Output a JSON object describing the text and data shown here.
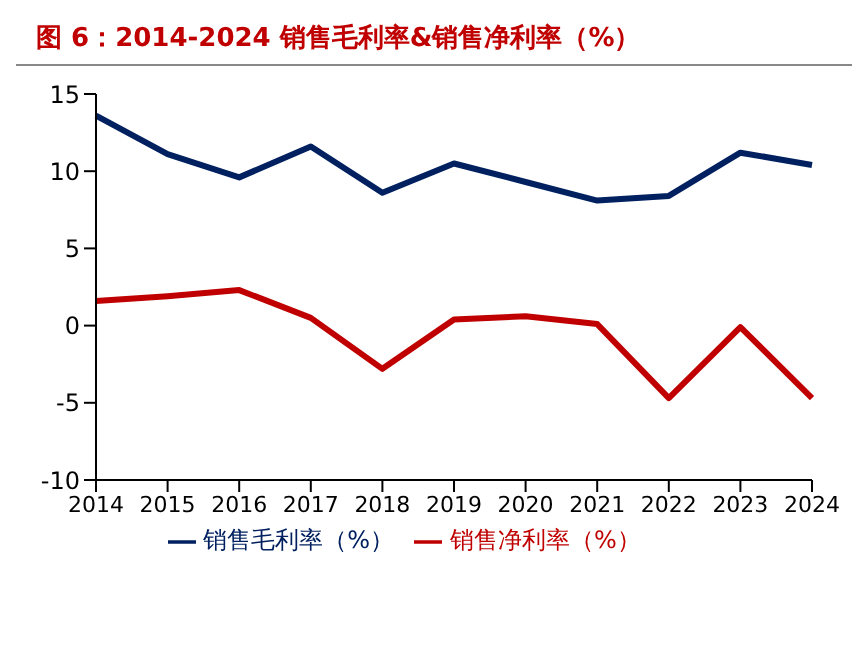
{
  "chart_data": {
    "type": "line",
    "title": "图 6：2014-2024 销售毛利率&销售净利率（%）",
    "categories": [
      "2014",
      "2015",
      "2016",
      "2017",
      "2018",
      "2019",
      "2020",
      "2021",
      "2022",
      "2023",
      "2024"
    ],
    "series": [
      {
        "name": "销售毛利率（%）",
        "color": "#002060",
        "values": [
          13.6,
          11.1,
          9.6,
          11.6,
          8.6,
          10.5,
          9.3,
          8.1,
          8.4,
          11.2,
          10.4
        ]
      },
      {
        "name": "销售净利率（%）",
        "color": "#c00000",
        "values": [
          1.6,
          1.9,
          2.3,
          0.5,
          -2.8,
          0.4,
          0.6,
          0.1,
          -4.7,
          -0.1,
          -4.7
        ]
      }
    ],
    "ylim": [
      -10,
      15
    ],
    "yticks": [
      -10,
      -5,
      0,
      5,
      10,
      15
    ],
    "grid": false,
    "legend": "bottom",
    "marker": "none",
    "line_style": "solid"
  }
}
